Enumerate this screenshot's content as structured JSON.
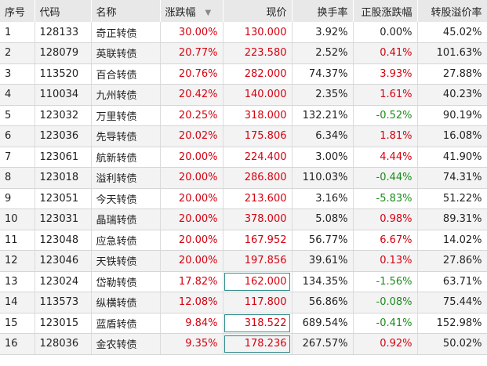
{
  "headers": [
    "序号",
    "代码",
    "名称",
    "涨跌幅",
    "现价",
    "换手率",
    "正股涨跌幅",
    "转股溢价率"
  ],
  "sort_arrow": "▼",
  "colors": {
    "up": "#d6000f",
    "down": "#1a8c1a",
    "flat": "#222222"
  },
  "rows": [
    {
      "idx": "1",
      "code": "128133",
      "name": "奇正转债",
      "chg": "30.00%",
      "price": "130.000",
      "turnover": "3.92%",
      "stock_chg": "0.00%",
      "premium": "45.02%"
    },
    {
      "idx": "2",
      "code": "128079",
      "name": "英联转债",
      "chg": "20.77%",
      "price": "223.580",
      "turnover": "2.52%",
      "stock_chg": "0.41%",
      "premium": "101.63%"
    },
    {
      "idx": "3",
      "code": "113520",
      "name": "百合转债",
      "chg": "20.76%",
      "price": "282.000",
      "turnover": "74.37%",
      "stock_chg": "3.93%",
      "premium": "27.88%"
    },
    {
      "idx": "4",
      "code": "110034",
      "name": "九州转债",
      "chg": "20.42%",
      "price": "140.000",
      "turnover": "2.35%",
      "stock_chg": "1.61%",
      "premium": "40.23%"
    },
    {
      "idx": "5",
      "code": "123032",
      "name": "万里转债",
      "chg": "20.25%",
      "price": "318.000",
      "turnover": "132.21%",
      "stock_chg": "-0.52%",
      "premium": "90.19%"
    },
    {
      "idx": "6",
      "code": "123036",
      "name": "先导转债",
      "chg": "20.02%",
      "price": "175.806",
      "turnover": "6.34%",
      "stock_chg": "1.81%",
      "premium": "16.08%"
    },
    {
      "idx": "7",
      "code": "123061",
      "name": "航新转债",
      "chg": "20.00%",
      "price": "224.400",
      "turnover": "3.00%",
      "stock_chg": "4.44%",
      "premium": "41.90%"
    },
    {
      "idx": "8",
      "code": "123018",
      "name": "溢利转债",
      "chg": "20.00%",
      "price": "286.800",
      "turnover": "110.03%",
      "stock_chg": "-0.44%",
      "premium": "74.31%"
    },
    {
      "idx": "9",
      "code": "123051",
      "name": "今天转债",
      "chg": "20.00%",
      "price": "213.600",
      "turnover": "3.16%",
      "stock_chg": "-5.83%",
      "premium": "51.22%"
    },
    {
      "idx": "10",
      "code": "123031",
      "name": "晶瑞转债",
      "chg": "20.00%",
      "price": "378.000",
      "turnover": "5.08%",
      "stock_chg": "0.98%",
      "premium": "89.31%"
    },
    {
      "idx": "11",
      "code": "123048",
      "name": "应急转债",
      "chg": "20.00%",
      "price": "167.952",
      "turnover": "56.77%",
      "stock_chg": "6.67%",
      "premium": "14.02%"
    },
    {
      "idx": "12",
      "code": "123046",
      "name": "天铁转债",
      "chg": "20.00%",
      "price": "197.856",
      "turnover": "39.61%",
      "stock_chg": "0.13%",
      "premium": "27.86%"
    },
    {
      "idx": "13",
      "code": "123024",
      "name": "岱勒转债",
      "chg": "17.82%",
      "price": "162.000",
      "turnover": "134.35%",
      "stock_chg": "-1.56%",
      "premium": "63.71%"
    },
    {
      "idx": "14",
      "code": "113573",
      "name": "纵横转债",
      "chg": "12.08%",
      "price": "117.800",
      "turnover": "56.86%",
      "stock_chg": "-0.08%",
      "premium": "75.44%"
    },
    {
      "idx": "15",
      "code": "123015",
      "name": "蓝盾转债",
      "chg": "9.84%",
      "price": "318.522",
      "turnover": "689.54%",
      "stock_chg": "-0.41%",
      "premium": "152.98%"
    },
    {
      "idx": "16",
      "code": "128036",
      "name": "金农转债",
      "chg": "9.35%",
      "price": "178.236",
      "turnover": "267.57%",
      "stock_chg": "0.92%",
      "premium": "50.02%"
    }
  ]
}
